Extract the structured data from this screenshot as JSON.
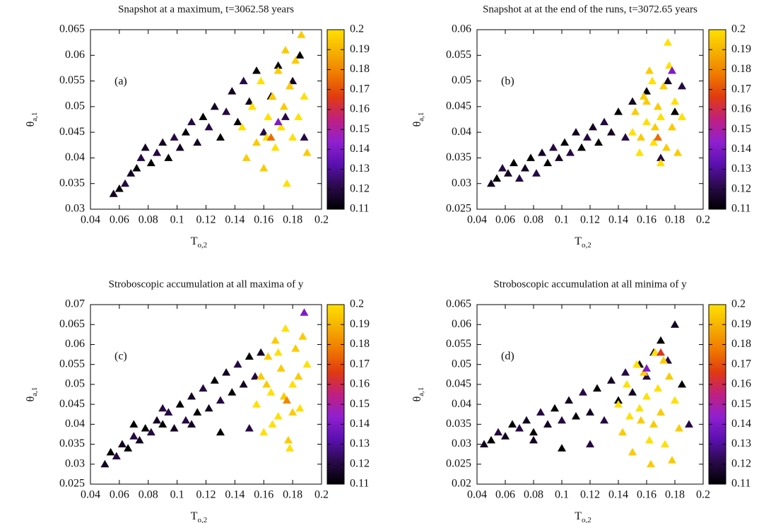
{
  "chart_data": [
    {
      "type": "scatter",
      "title": "Snapshot at a maximum, t=3062.58 years",
      "annotation": "(a)",
      "xlabel": "T",
      "xlabel_sub": "o,2",
      "ylabel": "θ",
      "ylabel_sub": "a,1",
      "xlim": [
        0.04,
        0.2
      ],
      "xticks": [
        0.04,
        0.06,
        0.08,
        0.1,
        0.12,
        0.14,
        0.16,
        0.18,
        0.2
      ],
      "ylim": [
        0.03,
        0.065
      ],
      "yticks": [
        0.03,
        0.035,
        0.04,
        0.045,
        0.05,
        0.055,
        0.06,
        0.065
      ],
      "clim": [
        0.11,
        0.2
      ],
      "cticks": [
        0.11,
        0.12,
        0.13,
        0.14,
        0.15,
        0.16,
        0.17,
        0.18,
        0.19,
        0.2
      ],
      "colormap": [
        "#000000",
        "#2a0a4a",
        "#5a10b0",
        "#9020d0",
        "#c02080",
        "#e03a10",
        "#f07a00",
        "#f5b000",
        "#ffe000"
      ],
      "x": [
        0.056,
        0.06,
        0.064,
        0.068,
        0.072,
        0.075,
        0.078,
        0.082,
        0.086,
        0.09,
        0.094,
        0.098,
        0.102,
        0.106,
        0.11,
        0.114,
        0.118,
        0.122,
        0.126,
        0.13,
        0.134,
        0.138,
        0.142,
        0.146,
        0.15,
        0.155,
        0.16,
        0.165,
        0.17,
        0.175,
        0.18,
        0.185,
        0.188,
        0.145,
        0.148,
        0.152,
        0.155,
        0.158,
        0.16,
        0.163,
        0.166,
        0.168,
        0.17,
        0.172,
        0.174,
        0.176,
        0.178,
        0.18,
        0.182,
        0.184,
        0.186,
        0.188,
        0.19,
        0.162,
        0.175,
        0.17,
        0.165
      ],
      "values": [
        0.033,
        0.034,
        0.035,
        0.037,
        0.038,
        0.04,
        0.042,
        0.039,
        0.041,
        0.043,
        0.04,
        0.044,
        0.042,
        0.045,
        0.047,
        0.043,
        0.048,
        0.046,
        0.05,
        0.044,
        0.049,
        0.053,
        0.047,
        0.055,
        0.051,
        0.057,
        0.045,
        0.052,
        0.058,
        0.048,
        0.055,
        0.06,
        0.044,
        0.046,
        0.04,
        0.05,
        0.043,
        0.055,
        0.038,
        0.048,
        0.052,
        0.042,
        0.057,
        0.046,
        0.05,
        0.035,
        0.054,
        0.044,
        0.059,
        0.048,
        0.064,
        0.052,
        0.041,
        0.044,
        0.061,
        0.047,
        0.044
      ],
      "c": [
        0.115,
        0.11,
        0.12,
        0.115,
        0.11,
        0.12,
        0.115,
        0.11,
        0.12,
        0.115,
        0.11,
        0.12,
        0.115,
        0.11,
        0.12,
        0.115,
        0.11,
        0.12,
        0.115,
        0.11,
        0.12,
        0.115,
        0.11,
        0.12,
        0.115,
        0.11,
        0.12,
        0.115,
        0.11,
        0.12,
        0.115,
        0.11,
        0.12,
        0.2,
        0.195,
        0.2,
        0.195,
        0.2,
        0.195,
        0.2,
        0.195,
        0.2,
        0.195,
        0.2,
        0.195,
        0.2,
        0.195,
        0.2,
        0.195,
        0.2,
        0.195,
        0.2,
        0.195,
        0.2,
        0.195,
        0.14,
        0.175
      ]
    },
    {
      "type": "scatter",
      "title": "Snapshot at at the end of the runs, t=3072.65 years",
      "annotation": "(b)",
      "xlabel": "T",
      "xlabel_sub": "o,2",
      "ylabel": "θ",
      "ylabel_sub": "a,1",
      "xlim": [
        0.04,
        0.2
      ],
      "xticks": [
        0.04,
        0.06,
        0.08,
        0.1,
        0.12,
        0.14,
        0.16,
        0.18,
        0.2
      ],
      "ylim": [
        0.025,
        0.06
      ],
      "yticks": [
        0.025,
        0.03,
        0.035,
        0.04,
        0.045,
        0.05,
        0.055,
        0.06
      ],
      "clim": [
        0.11,
        0.2
      ],
      "cticks": [
        0.11,
        0.12,
        0.13,
        0.14,
        0.15,
        0.16,
        0.17,
        0.18,
        0.19,
        0.2
      ],
      "colormap": [
        "#000000",
        "#2a0a4a",
        "#5a10b0",
        "#9020d0",
        "#c02080",
        "#e03a10",
        "#f07a00",
        "#f5b000",
        "#ffe000"
      ],
      "x": [
        0.05,
        0.054,
        0.058,
        0.062,
        0.066,
        0.07,
        0.074,
        0.078,
        0.082,
        0.086,
        0.09,
        0.094,
        0.098,
        0.102,
        0.106,
        0.11,
        0.114,
        0.118,
        0.122,
        0.126,
        0.13,
        0.135,
        0.14,
        0.145,
        0.15,
        0.16,
        0.17,
        0.175,
        0.18,
        0.185,
        0.15,
        0.152,
        0.155,
        0.158,
        0.16,
        0.162,
        0.165,
        0.168,
        0.17,
        0.172,
        0.175,
        0.178,
        0.18,
        0.182,
        0.185,
        0.156,
        0.164,
        0.174,
        0.176,
        0.16,
        0.17,
        0.166,
        0.178,
        0.168
      ],
      "values": [
        0.03,
        0.031,
        0.033,
        0.032,
        0.034,
        0.031,
        0.033,
        0.035,
        0.032,
        0.036,
        0.034,
        0.037,
        0.035,
        0.038,
        0.036,
        0.04,
        0.037,
        0.039,
        0.041,
        0.038,
        0.042,
        0.04,
        0.044,
        0.039,
        0.046,
        0.048,
        0.035,
        0.05,
        0.044,
        0.049,
        0.04,
        0.044,
        0.036,
        0.047,
        0.042,
        0.052,
        0.038,
        0.045,
        0.034,
        0.049,
        0.0575,
        0.041,
        0.046,
        0.036,
        0.043,
        0.039,
        0.05,
        0.037,
        0.053,
        0.046,
        0.043,
        0.041,
        0.052,
        0.039
      ],
      "c": [
        0.115,
        0.11,
        0.12,
        0.115,
        0.11,
        0.12,
        0.115,
        0.11,
        0.12,
        0.115,
        0.11,
        0.12,
        0.115,
        0.11,
        0.12,
        0.115,
        0.11,
        0.12,
        0.115,
        0.11,
        0.12,
        0.115,
        0.11,
        0.12,
        0.115,
        0.11,
        0.12,
        0.115,
        0.11,
        0.12,
        0.2,
        0.195,
        0.2,
        0.195,
        0.2,
        0.195,
        0.2,
        0.195,
        0.2,
        0.195,
        0.2,
        0.195,
        0.2,
        0.195,
        0.2,
        0.195,
        0.2,
        0.195,
        0.2,
        0.195,
        0.2,
        0.195,
        0.14,
        0.175
      ]
    },
    {
      "type": "scatter",
      "title": "Stroboscopic accumulation at all maxima of y",
      "annotation": "(c)",
      "xlabel": "T",
      "xlabel_sub": "o,2",
      "ylabel": "θ",
      "ylabel_sub": "a,1",
      "xlim": [
        0.04,
        0.2
      ],
      "xticks": [
        0.04,
        0.06,
        0.08,
        0.1,
        0.12,
        0.14,
        0.16,
        0.18,
        0.2
      ],
      "ylim": [
        0.025,
        0.07
      ],
      "yticks": [
        0.025,
        0.03,
        0.035,
        0.04,
        0.045,
        0.05,
        0.055,
        0.06,
        0.065,
        0.07
      ],
      "clim": [
        0.11,
        0.2
      ],
      "cticks": [
        0.11,
        0.12,
        0.13,
        0.14,
        0.15,
        0.16,
        0.17,
        0.18,
        0.19,
        0.2
      ],
      "colormap": [
        "#000000",
        "#2a0a4a",
        "#5a10b0",
        "#9020d0",
        "#c02080",
        "#e03a10",
        "#f07a00",
        "#f5b000",
        "#ffe000"
      ],
      "x": [
        0.05,
        0.054,
        0.058,
        0.062,
        0.066,
        0.07,
        0.074,
        0.078,
        0.082,
        0.086,
        0.09,
        0.094,
        0.098,
        0.102,
        0.106,
        0.11,
        0.114,
        0.118,
        0.122,
        0.126,
        0.13,
        0.134,
        0.138,
        0.142,
        0.146,
        0.15,
        0.154,
        0.158,
        0.07,
        0.09,
        0.11,
        0.13,
        0.15,
        0.155,
        0.158,
        0.16,
        0.163,
        0.165,
        0.168,
        0.17,
        0.172,
        0.175,
        0.177,
        0.18,
        0.182,
        0.185,
        0.187,
        0.19,
        0.162,
        0.166,
        0.174,
        0.178,
        0.184,
        0.17,
        0.18,
        0.188,
        0.176
      ],
      "values": [
        0.03,
        0.033,
        0.032,
        0.035,
        0.034,
        0.037,
        0.036,
        0.039,
        0.038,
        0.041,
        0.04,
        0.043,
        0.039,
        0.045,
        0.041,
        0.047,
        0.043,
        0.049,
        0.044,
        0.051,
        0.046,
        0.053,
        0.048,
        0.055,
        0.05,
        0.057,
        0.052,
        0.058,
        0.04,
        0.044,
        0.04,
        0.038,
        0.039,
        0.045,
        0.052,
        0.038,
        0.057,
        0.048,
        0.061,
        0.042,
        0.054,
        0.064,
        0.036,
        0.05,
        0.059,
        0.044,
        0.062,
        0.055,
        0.05,
        0.04,
        0.047,
        0.034,
        0.052,
        0.058,
        0.043,
        0.068,
        0.046
      ],
      "c": [
        0.115,
        0.11,
        0.12,
        0.115,
        0.11,
        0.12,
        0.115,
        0.11,
        0.12,
        0.115,
        0.11,
        0.12,
        0.115,
        0.11,
        0.12,
        0.115,
        0.11,
        0.12,
        0.115,
        0.11,
        0.12,
        0.115,
        0.11,
        0.12,
        0.115,
        0.11,
        0.12,
        0.115,
        0.11,
        0.12,
        0.115,
        0.11,
        0.12,
        0.2,
        0.195,
        0.2,
        0.195,
        0.2,
        0.195,
        0.2,
        0.195,
        0.2,
        0.195,
        0.2,
        0.195,
        0.2,
        0.195,
        0.2,
        0.195,
        0.2,
        0.195,
        0.2,
        0.195,
        0.2,
        0.195,
        0.14,
        0.18
      ]
    },
    {
      "type": "scatter",
      "title": "Stroboscopic accumulation at all minima of y",
      "annotation": "(d)",
      "xlabel": "T",
      "xlabel_sub": "o,2",
      "ylabel": "θ",
      "ylabel_sub": "a,1",
      "xlim": [
        0.04,
        0.2
      ],
      "xticks": [
        0.04,
        0.06,
        0.08,
        0.1,
        0.12,
        0.14,
        0.16,
        0.18,
        0.2
      ],
      "ylim": [
        0.02,
        0.065
      ],
      "yticks": [
        0.02,
        0.025,
        0.03,
        0.035,
        0.04,
        0.045,
        0.05,
        0.055,
        0.06,
        0.065
      ],
      "clim": [
        0.11,
        0.2
      ],
      "cticks": [
        0.11,
        0.12,
        0.13,
        0.14,
        0.15,
        0.16,
        0.17,
        0.18,
        0.19,
        0.2
      ],
      "colormap": [
        "#000000",
        "#2a0a4a",
        "#5a10b0",
        "#9020d0",
        "#c02080",
        "#e03a10",
        "#f07a00",
        "#f5b000",
        "#ffe000"
      ],
      "x": [
        0.045,
        0.05,
        0.055,
        0.06,
        0.065,
        0.07,
        0.075,
        0.08,
        0.085,
        0.09,
        0.095,
        0.1,
        0.105,
        0.11,
        0.115,
        0.12,
        0.125,
        0.13,
        0.135,
        0.14,
        0.145,
        0.15,
        0.155,
        0.16,
        0.165,
        0.17,
        0.175,
        0.18,
        0.185,
        0.19,
        0.08,
        0.1,
        0.12,
        0.14,
        0.143,
        0.146,
        0.15,
        0.153,
        0.156,
        0.16,
        0.163,
        0.166,
        0.17,
        0.173,
        0.176,
        0.18,
        0.183,
        0.148,
        0.158,
        0.168,
        0.178,
        0.162,
        0.172,
        0.155,
        0.165,
        0.17,
        0.16
      ],
      "values": [
        0.03,
        0.031,
        0.033,
        0.032,
        0.035,
        0.034,
        0.036,
        0.033,
        0.038,
        0.035,
        0.039,
        0.036,
        0.041,
        0.037,
        0.043,
        0.038,
        0.044,
        0.036,
        0.046,
        0.041,
        0.048,
        0.043,
        0.05,
        0.047,
        0.053,
        0.056,
        0.051,
        0.06,
        0.045,
        0.035,
        0.031,
        0.029,
        0.03,
        0.04,
        0.033,
        0.045,
        0.028,
        0.05,
        0.036,
        0.042,
        0.025,
        0.053,
        0.038,
        0.03,
        0.047,
        0.041,
        0.034,
        0.037,
        0.048,
        0.044,
        0.026,
        0.031,
        0.051,
        0.039,
        0.035,
        0.053,
        0.049
      ],
      "c": [
        0.115,
        0.11,
        0.12,
        0.115,
        0.11,
        0.12,
        0.115,
        0.11,
        0.12,
        0.115,
        0.11,
        0.12,
        0.115,
        0.11,
        0.12,
        0.115,
        0.11,
        0.12,
        0.115,
        0.11,
        0.12,
        0.115,
        0.11,
        0.12,
        0.115,
        0.11,
        0.12,
        0.115,
        0.11,
        0.12,
        0.115,
        0.11,
        0.12,
        0.2,
        0.195,
        0.2,
        0.195,
        0.2,
        0.195,
        0.2,
        0.195,
        0.2,
        0.195,
        0.2,
        0.195,
        0.2,
        0.195,
        0.2,
        0.195,
        0.2,
        0.195,
        0.2,
        0.195,
        0.2,
        0.195,
        0.165,
        0.14
      ]
    }
  ]
}
